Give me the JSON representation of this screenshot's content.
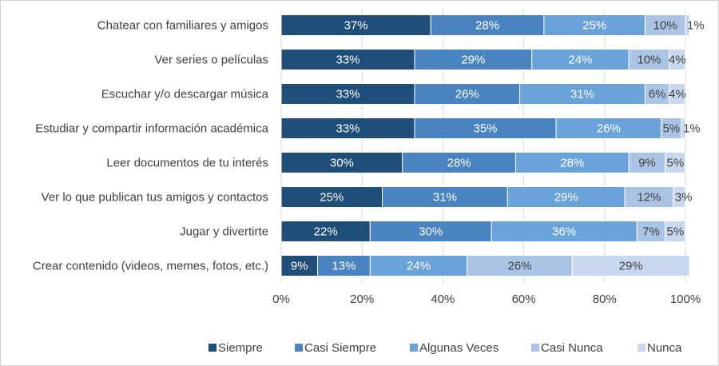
{
  "chart_data": {
    "type": "bar",
    "orientation": "horizontal",
    "stacked": true,
    "normalized": true,
    "categories": [
      "Chatear con familiares y amigos",
      "Ver series o películas",
      "Escuchar y/o descargar música",
      "Estudiar y compartir información académica",
      "Leer documentos de tu interés",
      "Ver lo que publican tus amigos y contactos",
      "Jugar y divertirte",
      "Crear contenido (videos, memes, fotos, etc.)"
    ],
    "series": [
      {
        "name": "Siempre",
        "color": "#1f4e79",
        "values": [
          37,
          33,
          33,
          33,
          30,
          25,
          22,
          9
        ]
      },
      {
        "name": "Casi Siempre",
        "color": "#4a84c0",
        "values": [
          28,
          29,
          26,
          35,
          28,
          31,
          30,
          13
        ]
      },
      {
        "name": "Algunas Veces",
        "color": "#6aa3da",
        "values": [
          25,
          24,
          31,
          26,
          28,
          29,
          36,
          24
        ]
      },
      {
        "name": "Casi Nunca",
        "color": "#a9c4e4",
        "values": [
          10,
          10,
          6,
          5,
          9,
          12,
          7,
          26
        ]
      },
      {
        "name": "Nunca",
        "color": "#c8d8ee",
        "values": [
          1,
          4,
          4,
          1,
          5,
          3,
          5,
          29
        ]
      }
    ],
    "data_labels": [
      [
        "37%",
        "28%",
        "25%",
        "10%",
        "1%"
      ],
      [
        "33%",
        "29%",
        "24%",
        "10%",
        "4%"
      ],
      [
        "33%",
        "26%",
        "31%",
        "6%",
        "4%"
      ],
      [
        "33%",
        "35%",
        "26%",
        "5%",
        "1%"
      ],
      [
        "30%",
        "28%",
        "28%",
        "9%",
        "5%"
      ],
      [
        "25%",
        "31%",
        "29%",
        "12%",
        "3%"
      ],
      [
        "22%",
        "30%",
        "36%",
        "7%",
        "5%"
      ],
      [
        "9%",
        "13%",
        "24%",
        "26%",
        "29%"
      ]
    ],
    "x_ticks": [
      "0%",
      "20%",
      "40%",
      "60%",
      "80%",
      "100%"
    ],
    "xlim": [
      0,
      100
    ],
    "grid": true,
    "legend_position": "bottom",
    "title": "",
    "xlabel": "",
    "ylabel": ""
  }
}
